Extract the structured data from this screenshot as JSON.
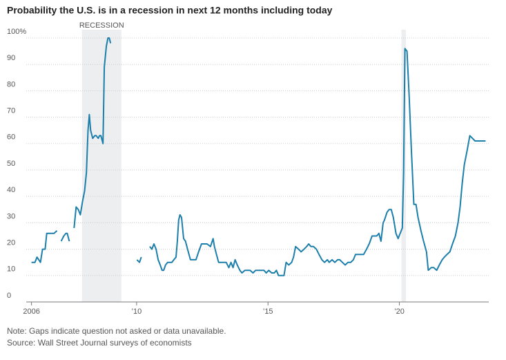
{
  "chart_data": {
    "type": "line",
    "title": "Probability the U.S. is in a recession in next 12 months including today",
    "note": "Note: Gaps indicate question not asked or data unavailable.",
    "source": "Source: Wall Street Journal surveys of economists",
    "recession_label": "RECESSION",
    "recessions": [
      {
        "start": 2007.92,
        "end": 2009.42
      },
      {
        "start": 2020.08,
        "end": 2020.25
      }
    ],
    "color": "#1b7eab",
    "grid": true,
    "xlim": [
      2005.8,
      2023.4
    ],
    "ylim": [
      0,
      100
    ],
    "xticks": [
      2006,
      {
        "value": 2010,
        "label": "’10"
      },
      {
        "value": 2015,
        "label": "’15"
      },
      {
        "value": 2020,
        "label": "’20"
      }
    ],
    "yticks": [
      0,
      10,
      20,
      30,
      40,
      50,
      60,
      70,
      80,
      90,
      {
        "value": 100,
        "label": "100%"
      }
    ],
    "x": [
      2006.0,
      2006.13,
      2006.21,
      2006.34,
      2006.42,
      2006.52,
      2006.58,
      2006.79,
      2006.86,
      2006.97,
      2007.05,
      2007.13,
      2007.23,
      2007.31,
      2007.36,
      2007.44,
      2007.53,
      2007.62,
      2007.7,
      2007.78,
      2007.86,
      2007.94,
      2008.02,
      2008.09,
      2008.15,
      2008.2,
      2008.25,
      2008.33,
      2008.41,
      2008.46,
      2008.54,
      2008.59,
      2008.64,
      2008.72,
      2008.77,
      2008.85,
      2008.91,
      2008.96,
      2009.01,
      2009.5,
      2010.01,
      2010.11,
      2010.18,
      2010.34,
      2010.5,
      2010.58,
      2010.66,
      2010.74,
      2010.82,
      2010.9,
      2010.97,
      2011.03,
      2011.1,
      2011.18,
      2011.34,
      2011.42,
      2011.5,
      2011.55,
      2011.6,
      2011.65,
      2011.71,
      2011.79,
      2011.86,
      2011.94,
      2012.05,
      2012.26,
      2012.36,
      2012.47,
      2012.57,
      2012.68,
      2012.81,
      2012.91,
      2012.96,
      2013.04,
      2013.12,
      2013.41,
      2013.51,
      2013.59,
      2013.67,
      2013.75,
      2013.83,
      2013.93,
      2014.01,
      2014.12,
      2014.32,
      2014.43,
      2014.53,
      2014.85,
      2014.93,
      2015.03,
      2015.14,
      2015.24,
      2015.32,
      2015.4,
      2015.61,
      2015.69,
      2015.79,
      2015.9,
      2015.97,
      2016.05,
      2016.16,
      2016.26,
      2016.37,
      2016.47,
      2016.55,
      2016.63,
      2016.73,
      2016.84,
      2016.94,
      2017.05,
      2017.15,
      2017.26,
      2017.33,
      2017.44,
      2017.54,
      2017.65,
      2017.73,
      2017.83,
      2017.94,
      2018.04,
      2018.15,
      2018.25,
      2018.33,
      2018.43,
      2018.64,
      2018.75,
      2018.85,
      2018.96,
      2019.14,
      2019.22,
      2019.3,
      2019.38,
      2019.43,
      2019.53,
      2019.61,
      2019.69,
      2019.77,
      2019.82,
      2019.87,
      2019.95,
      2020.03,
      2020.11,
      2020.16,
      2020.21,
      2020.29,
      2020.37,
      2020.45,
      2020.55,
      2020.63,
      2020.71,
      2020.82,
      2020.92,
      2021.03,
      2021.1,
      2021.21,
      2021.31,
      2021.42,
      2021.52,
      2021.63,
      2021.71,
      2021.81,
      2021.92,
      2022.02,
      2022.13,
      2022.23,
      2022.31,
      2022.39,
      2022.47,
      2022.57,
      2022.68,
      2022.78,
      2022.88,
      2022.96,
      2023.28
    ],
    "values": [
      15,
      15,
      17,
      15,
      20,
      20,
      26,
      26,
      26,
      27,
      null,
      23,
      25,
      26,
      26,
      23,
      null,
      28,
      36,
      35,
      33,
      38,
      42,
      49,
      65,
      71,
      65,
      62,
      63,
      63,
      62,
      63,
      63,
      60,
      89,
      97,
      100,
      100,
      98,
      null,
      16,
      15,
      17,
      null,
      21,
      20,
      22,
      20,
      16,
      14,
      12,
      12,
      14,
      15,
      15,
      16,
      17,
      23,
      31,
      33,
      32,
      24,
      23,
      20,
      16,
      16,
      19,
      22,
      22,
      22,
      21,
      24,
      21,
      18,
      15,
      15,
      13,
      15,
      13,
      16,
      14,
      12,
      11,
      12,
      12,
      11,
      12,
      12,
      11,
      12,
      11,
      11,
      12,
      10,
      10,
      15,
      14,
      15,
      17,
      21,
      20,
      19,
      20,
      21,
      22,
      21,
      21,
      20,
      18,
      16,
      15,
      16,
      15,
      16,
      15,
      16,
      16,
      15,
      14,
      15,
      15,
      16,
      18,
      18,
      18,
      20,
      22,
      25,
      25,
      26,
      23,
      30,
      31,
      34,
      35,
      35,
      32,
      29,
      26,
      24,
      26,
      28,
      49,
      96,
      95,
      78,
      59,
      37,
      37,
      32,
      27,
      23,
      19,
      12,
      13,
      13,
      12,
      14,
      16,
      17,
      18,
      19,
      22,
      25,
      30,
      36,
      45,
      52,
      57,
      63,
      62,
      61,
      61,
      61
    ]
  }
}
